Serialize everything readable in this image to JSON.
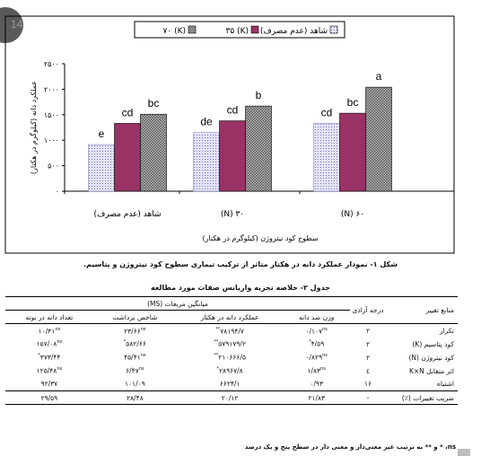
{
  "page_number": "14",
  "chart_data": {
    "type": "bar",
    "categories": [
      "شاهد (عدم مصرف)",
      "۳۰ (N)",
      "۶۰ (N)"
    ],
    "series": [
      {
        "name": "شاهد (عدم مصرف)",
        "values": [
          915,
          1150,
          1330
        ],
        "letters": [
          "e",
          "de",
          "cd"
        ],
        "color": "#d9d9ff",
        "pattern": "dots"
      },
      {
        "name": "۳۵ (K)",
        "values": [
          1330,
          1380,
          1530
        ],
        "letters": [
          "cd",
          "cd",
          "bc"
        ],
        "color": "#993366",
        "pattern": "solid"
      },
      {
        "name": "۷۰ (K)",
        "values": [
          1510,
          1670,
          2040
        ],
        "letters": [
          "bc",
          "b",
          "a"
        ],
        "color": "#a0a0a0",
        "pattern": "checker"
      }
    ],
    "ylim": [
      0,
      2500
    ],
    "yticks": [
      "۰",
      "۵۰۰",
      "۱۰۰۰",
      "۱۵۰۰",
      "۲۰۰۰",
      "۲۵۰۰"
    ],
    "ylabel": "عملکرد دانه (کیلوگرم در هکتار)",
    "xlabel": "سطوح کود نیتروژن (کیلوگرم در هکتار)",
    "legend": "top",
    "grid": false
  },
  "figure_caption": "شکل ۱- نمودار عملکرد دانه در هکتار متاثر از ترکیب تیماری سطوح کود نیتروژن و پتاسیم.",
  "table": {
    "caption": "جدول ۲- خلاصه تجزیه واریانس صفات مورد مطالعه",
    "header_source": "منابع تغییر",
    "header_df": "درجه آزادی",
    "header_ms": "میانگین مربعات (MS)",
    "columns": [
      "وزن صد دانه",
      "عملکرد دانه در هکتار",
      "شاخص برداشت",
      "تعداد دانه در بوته"
    ],
    "rows": [
      {
        "source": "تکرار",
        "df": "۲",
        "cells": [
          [
            "۰/۱۰۷",
            "ns"
          ],
          [
            "۷۸۱۹۴/۷",
            "**"
          ],
          [
            "۲۳/۶۶",
            "ns"
          ],
          [
            "۱۰/۴۱",
            "ns"
          ]
        ]
      },
      {
        "source": "کود پتاسیم (K)",
        "df": "۲",
        "cells": [
          [
            "۴/۵۹",
            "*"
          ],
          [
            "۵۷۹۱۷۹/۲",
            "**"
          ],
          [
            "۵۸۲/۶۶",
            "*"
          ],
          [
            "۱۵۷/۰۸",
            "ns"
          ]
        ]
      },
      {
        "source": "کود نیتروژن (N)",
        "df": "۲",
        "cells": [
          [
            "۰/۸۲۹",
            "ns"
          ],
          [
            "۲۱۰۶۶۶/۵",
            "**"
          ],
          [
            "۴۵/۴۱",
            "ns"
          ],
          [
            "۳۷۳/۴۴",
            "*"
          ]
        ]
      },
      {
        "source": "اثر متقابل K×N",
        "df": "٤",
        "cells": [
          [
            "۱/۸۳",
            "ns"
          ],
          [
            "۲۸۹۶۷/۸",
            "*"
          ],
          [
            "۶/۴۷",
            "ns"
          ],
          [
            "۱۲۵/۴۸",
            "ns"
          ]
        ]
      },
      {
        "source": "اشتباه",
        "df": "۱۶",
        "cells": [
          [
            "۰/۹۳",
            ""
          ],
          [
            "۶۶۲۴/۱",
            ""
          ],
          [
            "۱۰۱/۰۹",
            ""
          ],
          [
            "۹۲/۳۷",
            ""
          ]
        ]
      }
    ],
    "cv_row": {
      "source": "ضریب تغییرات (٪)",
      "df": "-",
      "cells": [
        "۲۱/۸۳",
        "۲۰/۱۲",
        "۲۸/۴۸",
        "۲۹/۵۹"
      ]
    }
  },
  "footnote": "ns، * و ** به ترتیب غیر معنی‌دار و معنی دار در سطح پنج و یک درصد"
}
